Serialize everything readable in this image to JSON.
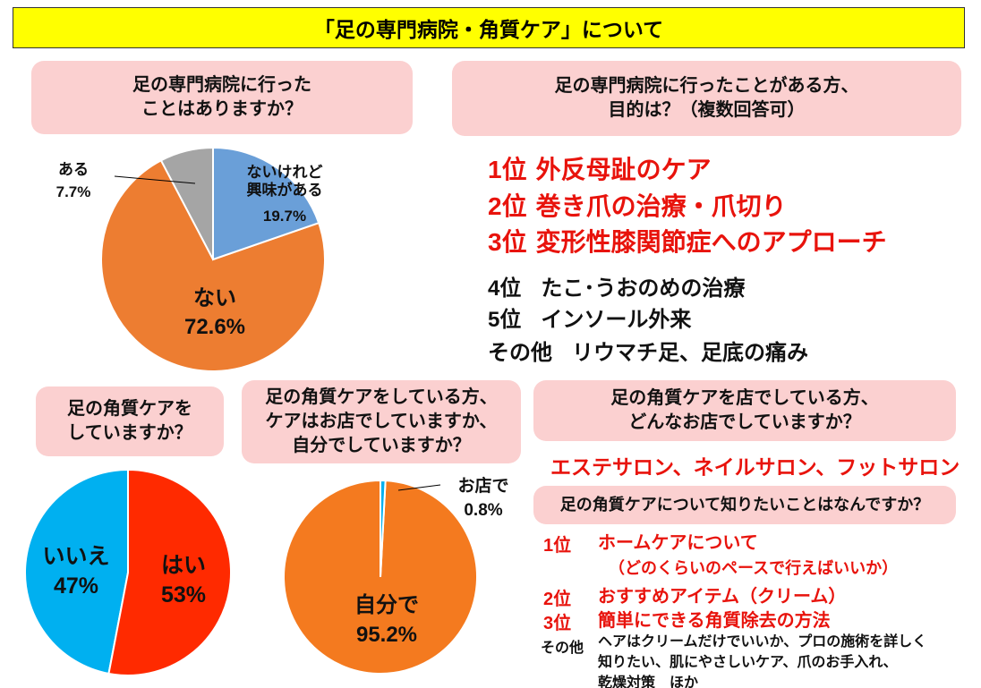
{
  "header": {
    "title": "「足の専門病院・角質ケア」について"
  },
  "questions": [
    "足の専門病院に行った\nことはありますか？",
    "足の専門病院に行ったことがある方、\n目的は？（複数回答可）",
    "足の角質ケアを\nしていますか？",
    "足の角質ケアをしている方、\nケアはお店でしていますか、\n自分でしていますか？",
    "足の角質ケアを店でしている方、\nどんなお店でしていますか？",
    "足の角質ケアについて知りたいことはなんですか？"
  ],
  "purposes": [
    {
      "rank": "1位",
      "text": "外反母趾のケア"
    },
    {
      "rank": "2位",
      "text": "巻き爪の治療・爪切り"
    },
    {
      "rank": "3位",
      "text": "変形性膝関節症へのアプローチ"
    },
    {
      "rank": "4位",
      "text": "たこ･うおのめの治療"
    },
    {
      "rank": "5位",
      "text": "インソール外来"
    },
    {
      "rank": "その他",
      "text": "リウマチ足、足底の痛み"
    }
  ],
  "shops": "エステサロン、ネイルサロン、フットサロン",
  "wants": [
    {
      "rank": "1位",
      "text": "ホームケアについて",
      "note": "（どのくらいのペースで行えばいいか）"
    },
    {
      "rank": "2位",
      "text": "おすすめアイテム（クリーム）"
    },
    {
      "rank": "3位",
      "text": "簡単にできる角質除去の方法"
    },
    {
      "rank": "その他",
      "text": "ヘアはクリームだけでいいか、プロの施術を詳しく\n知りたい、肌にやさしいケア、爪のお手入れ、\n乾燥対策　ほか"
    }
  ],
  "chart_data": [
    {
      "type": "pie",
      "categories": [
        "ないけれど\n興味がある",
        "ない",
        "ある"
      ],
      "values": [
        19.7,
        72.6,
        7.7
      ],
      "value_labels": [
        "19.7%",
        "72.6%",
        "7.7%"
      ],
      "colors": [
        "#6a9fd8",
        "#ed7d31",
        "#a5a5a5"
      ]
    },
    {
      "type": "pie",
      "categories": [
        "はい",
        "いいえ"
      ],
      "values": [
        53,
        47
      ],
      "value_labels": [
        "53%",
        "47%"
      ],
      "colors": [
        "#ff2a00",
        "#00b0f0"
      ]
    },
    {
      "type": "pie",
      "categories": [
        "お店で",
        "自分で"
      ],
      "values": [
        0.8,
        95.2
      ],
      "value_labels": [
        "0.8%",
        "95.2%"
      ],
      "colors": [
        "#00b0f0",
        "#f47a1f"
      ]
    }
  ]
}
